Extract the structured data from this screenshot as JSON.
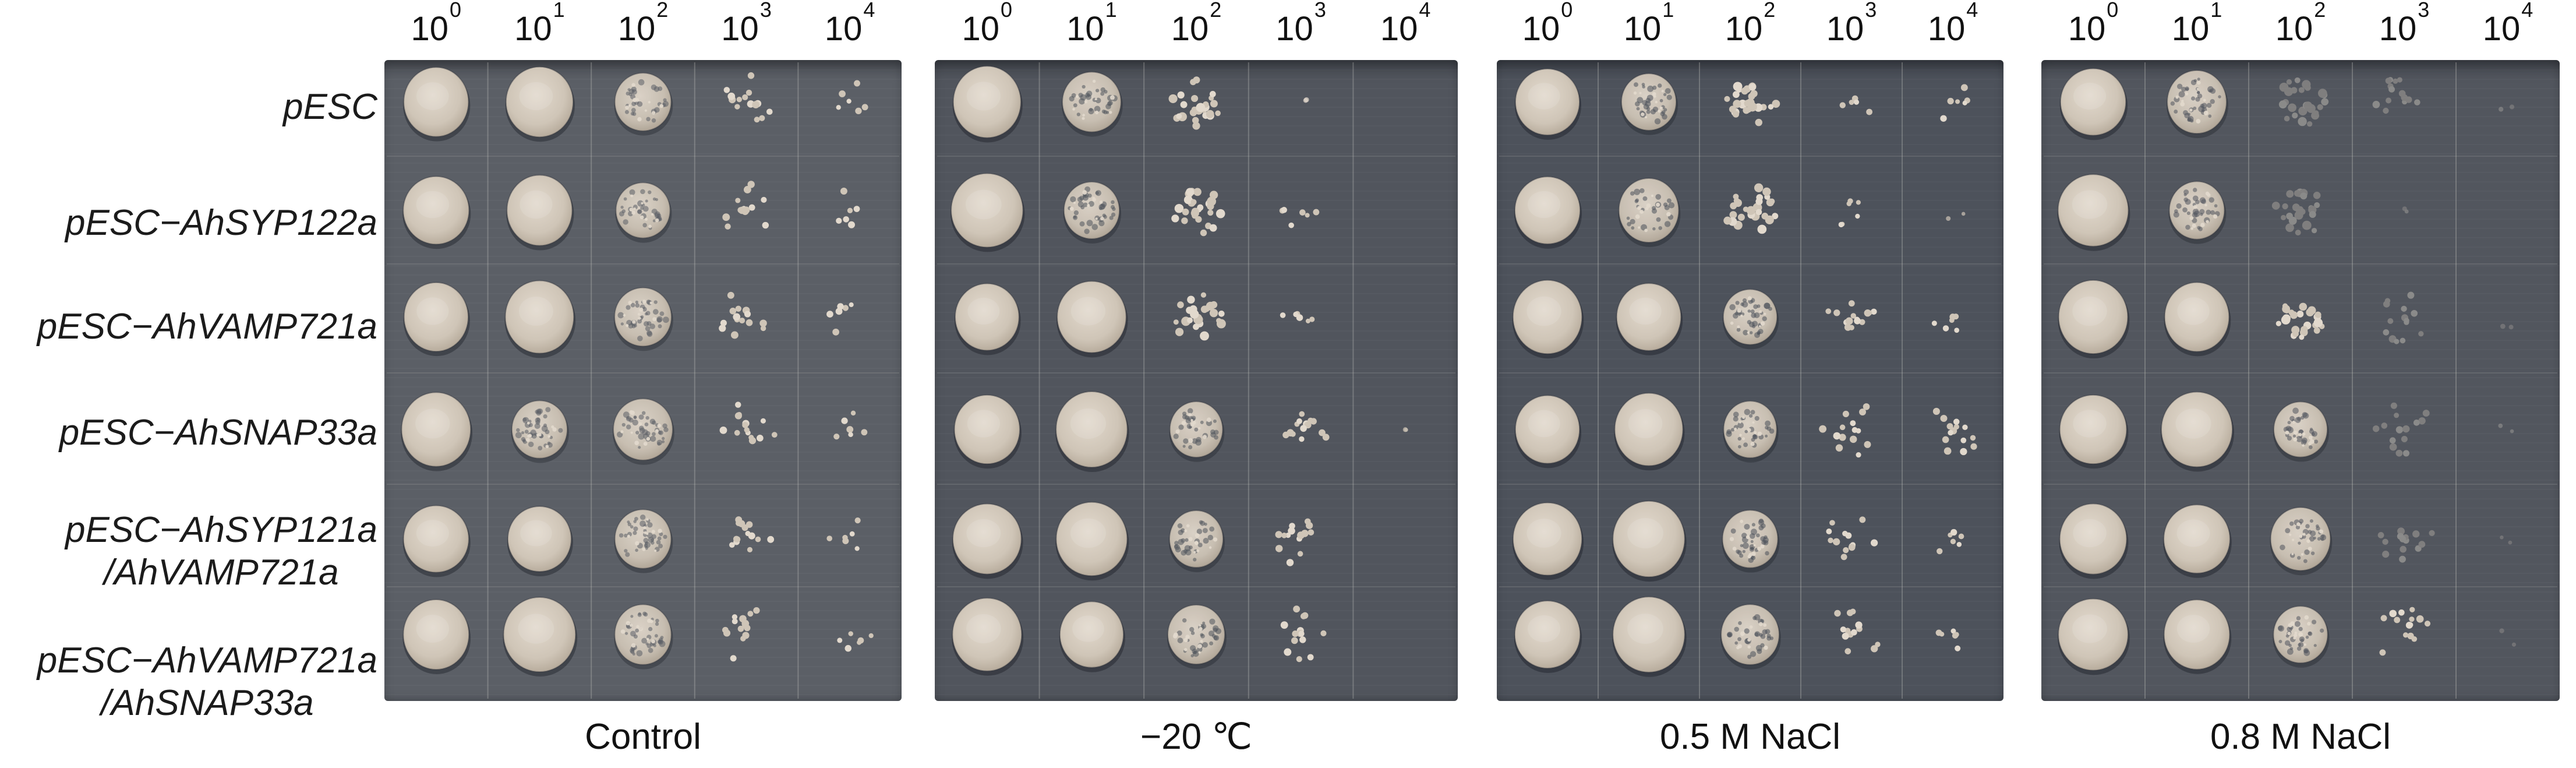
{
  "figure": {
    "type": "yeast-spot-dilution-assay",
    "dilutions": [
      {
        "base": "10",
        "exp": "0"
      },
      {
        "base": "10",
        "exp": "1"
      },
      {
        "base": "10",
        "exp": "2"
      },
      {
        "base": "10",
        "exp": "3"
      },
      {
        "base": "10",
        "exp": "4"
      }
    ],
    "row_labels": [
      [
        "pESC"
      ],
      [
        "pESC−AhSYP122a"
      ],
      [
        "pESC−AhVAMP721a"
      ],
      [
        "pESC−AhSNAP33a"
      ],
      [
        "pESC−AhSYP121a",
        "/AhVAMP721a"
      ],
      [
        "pESC−AhVAMP721a",
        "/AhSNAP33a"
      ]
    ],
    "panels": [
      {
        "caption": "Control",
        "bg": "#5b5f66",
        "growth": [
          [
            "solid",
            "solid",
            "dense",
            "scatter",
            "few"
          ],
          [
            "solid",
            "solid",
            "dense",
            "scatter",
            "few"
          ],
          [
            "solid",
            "solid",
            "dense",
            "scatter",
            "few"
          ],
          [
            "solid",
            "dense",
            "dense",
            "scatter",
            "few"
          ],
          [
            "solid",
            "solid",
            "dense",
            "scatter",
            "few"
          ],
          [
            "solid",
            "solid",
            "dense",
            "scatter",
            "few"
          ]
        ]
      },
      {
        "caption": "−20 ℃",
        "bg": "#51555d",
        "growth": [
          [
            "solid",
            "dense",
            "cluster",
            "trace",
            "none"
          ],
          [
            "solid",
            "dense",
            "cluster",
            "few",
            "none"
          ],
          [
            "solid",
            "solid",
            "cluster",
            "few",
            "none"
          ],
          [
            "solid",
            "solid",
            "dense",
            "scatter",
            "trace"
          ],
          [
            "solid",
            "solid",
            "dense",
            "scatter",
            "none"
          ],
          [
            "solid",
            "solid",
            "dense",
            "scatter",
            "none"
          ]
        ]
      },
      {
        "caption": "0.5 M NaCl",
        "bg": "#4d525b",
        "growth": [
          [
            "solid",
            "dense",
            "cluster",
            "few",
            "few"
          ],
          [
            "solid",
            "dense",
            "cluster",
            "few",
            "trace"
          ],
          [
            "solid",
            "solid",
            "dense",
            "scatter",
            "few"
          ],
          [
            "solid",
            "solid",
            "dense",
            "scatter",
            "scatter"
          ],
          [
            "solid",
            "solid",
            "dense",
            "scatter",
            "few"
          ],
          [
            "solid",
            "solid",
            "dense",
            "scatter",
            "few"
          ]
        ]
      },
      {
        "caption": "0.8 M NaCl",
        "bg": "#52565e",
        "growth": [
          [
            "solid",
            "dense",
            "cluster-faint",
            "scatter-faint",
            "trace-faint"
          ],
          [
            "solid",
            "dense",
            "cluster-faint",
            "trace-faint",
            "none"
          ],
          [
            "solid",
            "solid",
            "cluster",
            "scatter-faint",
            "trace-faint"
          ],
          [
            "solid",
            "solid",
            "dense",
            "scatter-faint",
            "trace-faint"
          ],
          [
            "solid",
            "solid",
            "dense",
            "scatter-faint",
            "trace-faint"
          ],
          [
            "solid",
            "solid",
            "dense",
            "scatter",
            "trace-faint"
          ]
        ]
      }
    ],
    "colony_colors": {
      "base": "#cfc5b7",
      "light": "#e2d9cd",
      "dark": "#b2a696",
      "faint": "#b6afa6",
      "faint_light": "#cfc9bf"
    }
  }
}
